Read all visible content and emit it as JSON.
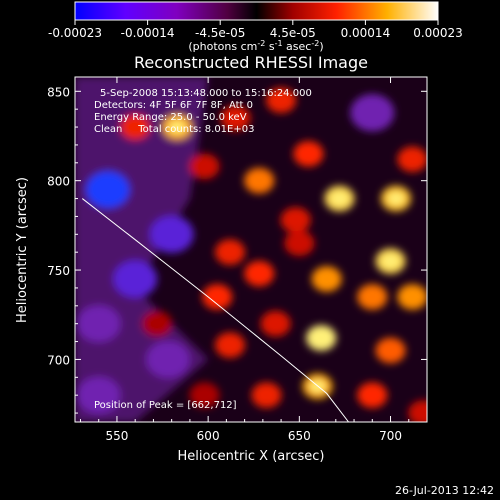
{
  "chart_data": {
    "type": "heatmap",
    "title": "Reconstructed RHESSI Image",
    "xlabel": "Heliocentric X (arcsec)",
    "ylabel": "Heliocentric Y (arcsec)",
    "xlim": [
      527,
      720
    ],
    "ylim": [
      665,
      858
    ],
    "xticks": [
      "550",
      "600",
      "650",
      "700"
    ],
    "xtick_values": [
      550,
      600,
      650,
      700
    ],
    "yticks": [
      "700",
      "750",
      "800",
      "850"
    ],
    "ytick_values": [
      700,
      750,
      800,
      850
    ],
    "colorbar": {
      "labels": [
        "-0.00023",
        "-0.00014",
        "-4.5e-05",
        "4.5e-05",
        "0.00014",
        "0.00023"
      ],
      "range": [
        -0.00023,
        0.00023
      ],
      "units_text": "(photons cm",
      "units_sup1": "-2",
      "units_mid": " s",
      "units_sup2": "-1",
      "units_end": " asec",
      "units_sup3": "-2",
      "units_close": ")",
      "colors": [
        "#0000ff",
        "#8000ff",
        "#600060",
        "#000000",
        "#b00000",
        "#ff4000",
        "#ffc000",
        "#ffffff"
      ]
    },
    "annotations": [
      "5-Sep-2008 15:13:48.000 to 15:16:24.000",
      "Detectors: 4F 5F 6F 7F 8F, Att 0",
      "Energy Range: 25.0 - 50.0 keV",
      "Clean     Total counts: 8.01E+03"
    ],
    "peak_label": "Position of Peak = [662,712]",
    "peak_position": [
      662,
      712
    ],
    "limb_curve": [
      [
        531,
        790
      ],
      [
        560,
        767
      ],
      [
        600,
        735
      ],
      [
        640,
        702
      ],
      [
        665,
        681
      ],
      [
        677,
        665
      ]
    ],
    "blobs": [
      {
        "x": 583,
        "y": 830,
        "v": 0.85
      },
      {
        "x": 560,
        "y": 830,
        "v": 0.55
      },
      {
        "x": 615,
        "y": 835,
        "v": 0.5
      },
      {
        "x": 640,
        "y": 845,
        "v": 0.55
      },
      {
        "x": 655,
        "y": 815,
        "v": 0.6
      },
      {
        "x": 628,
        "y": 800,
        "v": 0.75
      },
      {
        "x": 598,
        "y": 808,
        "v": 0.45
      },
      {
        "x": 672,
        "y": 790,
        "v": 0.95
      },
      {
        "x": 703,
        "y": 790,
        "v": 0.9
      },
      {
        "x": 648,
        "y": 778,
        "v": 0.5
      },
      {
        "x": 690,
        "y": 838,
        "v": -0.6
      },
      {
        "x": 712,
        "y": 812,
        "v": 0.55
      },
      {
        "x": 580,
        "y": 770,
        "v": -0.7
      },
      {
        "x": 545,
        "y": 795,
        "v": -0.95
      },
      {
        "x": 560,
        "y": 745,
        "v": -0.65
      },
      {
        "x": 540,
        "y": 720,
        "v": -0.55
      },
      {
        "x": 578,
        "y": 700,
        "v": -0.6
      },
      {
        "x": 540,
        "y": 680,
        "v": -0.5
      },
      {
        "x": 612,
        "y": 760,
        "v": 0.55
      },
      {
        "x": 628,
        "y": 748,
        "v": 0.6
      },
      {
        "x": 605,
        "y": 735,
        "v": 0.6
      },
      {
        "x": 612,
        "y": 708,
        "v": 0.55
      },
      {
        "x": 637,
        "y": 720,
        "v": 0.5
      },
      {
        "x": 662,
        "y": 712,
        "v": 1.0
      },
      {
        "x": 690,
        "y": 735,
        "v": 0.75
      },
      {
        "x": 665,
        "y": 745,
        "v": 0.8
      },
      {
        "x": 700,
        "y": 755,
        "v": 0.95
      },
      {
        "x": 712,
        "y": 735,
        "v": 0.8
      },
      {
        "x": 700,
        "y": 705,
        "v": 0.7
      },
      {
        "x": 660,
        "y": 685,
        "v": 0.85
      },
      {
        "x": 690,
        "y": 680,
        "v": 0.6
      },
      {
        "x": 632,
        "y": 680,
        "v": 0.55
      },
      {
        "x": 598,
        "y": 680,
        "v": 0.35
      },
      {
        "x": 718,
        "y": 670,
        "v": 0.45
      },
      {
        "x": 572,
        "y": 720,
        "v": 0.35
      },
      {
        "x": 650,
        "y": 765,
        "v": 0.45
      }
    ]
  },
  "timestamp": "26-Jul-2013 12:42"
}
